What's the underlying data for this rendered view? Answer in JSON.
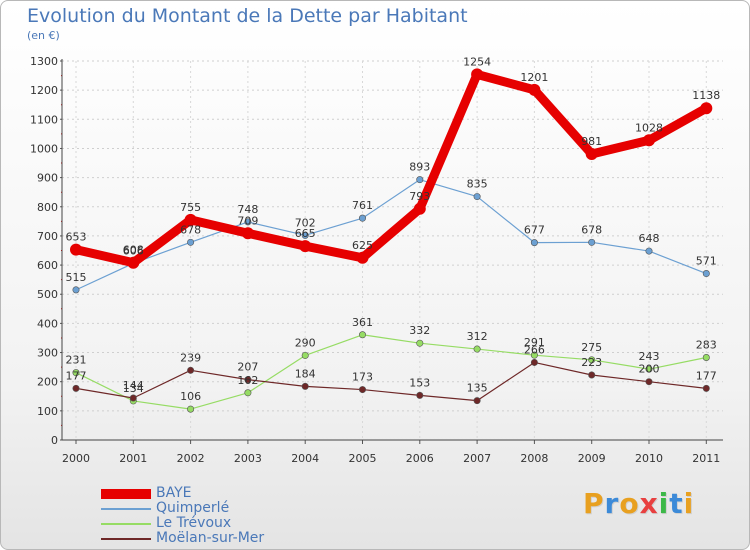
{
  "chart_data": {
    "type": "line",
    "title": "Evolution du Montant de la Dette par Habitant",
    "unit_label": "(en €)",
    "xlabel": "",
    "ylabel": "",
    "ylim": [
      0,
      1300
    ],
    "yticks": [
      "0",
      "100",
      "200",
      "300",
      "400",
      "500",
      "600",
      "700",
      "800",
      "900",
      "1000",
      "1100",
      "1200",
      "1300"
    ],
    "grid": true,
    "legend_position": "bottom-left",
    "categories": [
      "2000",
      "2001",
      "2002",
      "2003",
      "2004",
      "2005",
      "2006",
      "2007",
      "2008",
      "2009",
      "2010",
      "2011"
    ],
    "series": [
      {
        "name": "BAYE",
        "color": "#e60000",
        "values": [
          653,
          608,
          755,
          709,
          665,
          625,
          793,
          1254,
          1201,
          981,
          1028,
          1138
        ],
        "labels": [
          "653",
          "608",
          "755",
          "709",
          "665",
          "625",
          "793",
          "1254",
          "1201",
          "981",
          "1028",
          "1138"
        ]
      },
      {
        "name": "Quimperlé",
        "color": "#6ca0d2",
        "values": [
          515,
          606,
          678,
          748,
          702,
          761,
          893,
          835,
          677,
          678,
          648,
          571
        ],
        "labels": [
          "515",
          "606",
          "678",
          "748",
          "702",
          "761",
          "893",
          "835",
          "677",
          "678",
          "648",
          "571"
        ]
      },
      {
        "name": "Le Trévoux",
        "color": "#96dc64",
        "values": [
          231,
          134,
          106,
          162,
          290,
          361,
          332,
          312,
          291,
          275,
          243,
          283
        ],
        "labels": [
          "231",
          "134",
          "106",
          "162",
          "290",
          "361",
          "332",
          "312",
          "291",
          "275",
          "243",
          "283"
        ]
      },
      {
        "name": "Moëlan-sur-Mer",
        "color": "#6e2828",
        "values": [
          177,
          144,
          239,
          207,
          184,
          173,
          153,
          135,
          266,
          223,
          200,
          177
        ],
        "labels": [
          "177",
          "144",
          "239",
          "207",
          "184",
          "173",
          "153",
          "135",
          "266",
          "223",
          "200",
          "177"
        ]
      }
    ]
  },
  "brand": {
    "letters": [
      "P",
      "r",
      "o",
      "x",
      "i",
      "t",
      "i"
    ],
    "colors": [
      "#e8a020",
      "#3c8ad8",
      "#e8a020",
      "#e84040",
      "#3cb848",
      "#3c8ad8",
      "#e8a020"
    ]
  }
}
